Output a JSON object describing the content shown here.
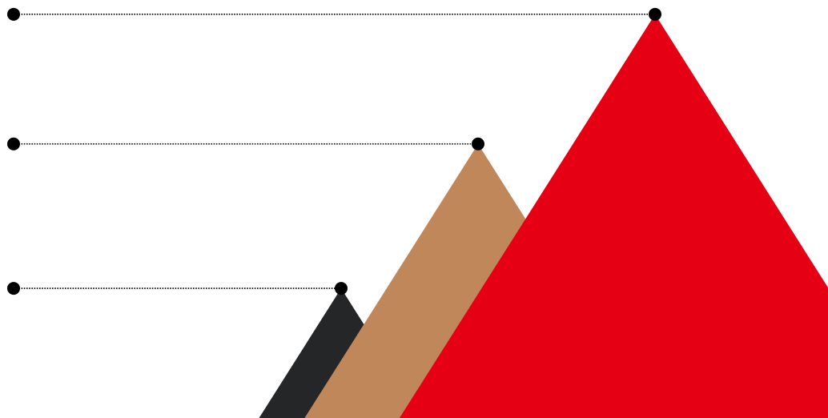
{
  "chart_data": {
    "type": "infographic-triangles",
    "title": "",
    "xlabel": "",
    "ylabel": "",
    "grid": false,
    "legend": "none",
    "series": [
      {
        "value": 0.44,
        "color": "#252627"
      },
      {
        "value": 0.93,
        "color": "#C0875A"
      },
      {
        "value": 1.37,
        "color": "#E60013"
      }
    ],
    "leader_line": {
      "style": "dotted",
      "color": "#000000"
    },
    "marker": {
      "shape": "dot",
      "color": "#000000"
    }
  }
}
